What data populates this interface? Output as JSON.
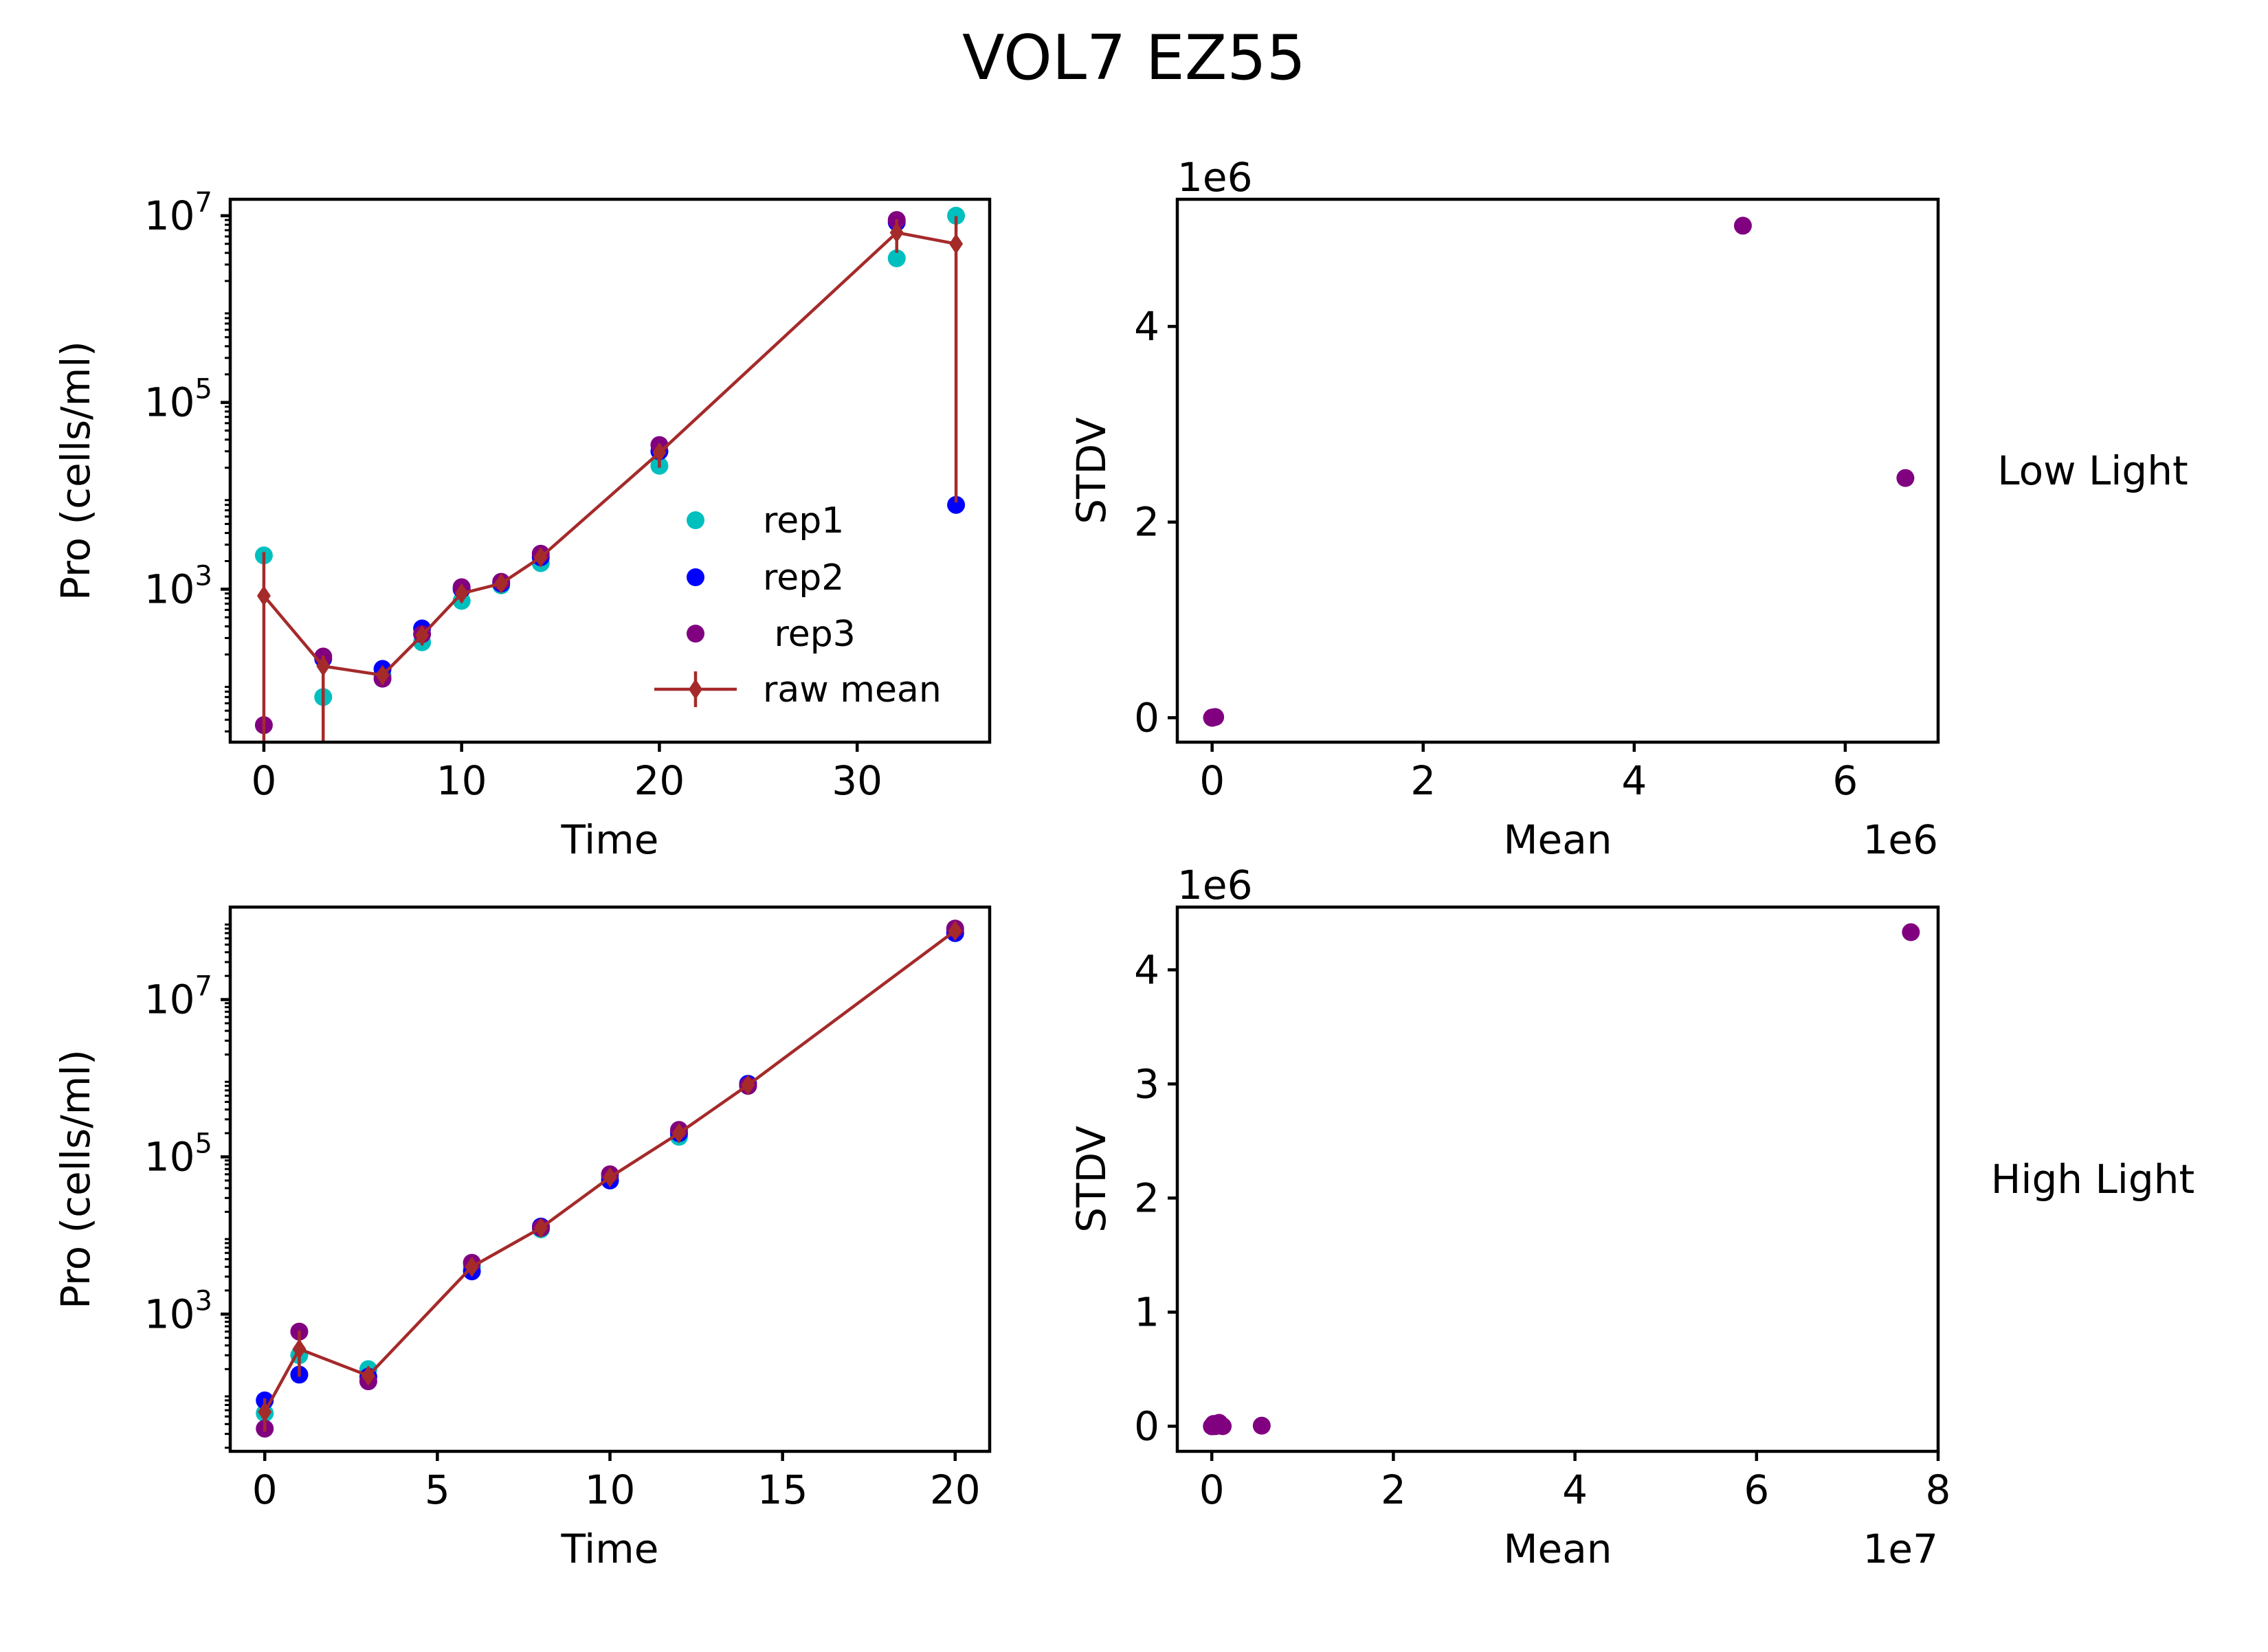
{
  "figure_title": "VOL7 EZ55",
  "colors": {
    "rep1": "#00bfbf",
    "rep2": "#0000ff",
    "rep3": "#800080",
    "raw_mean": "#a52a2a"
  },
  "chart_data": [
    {
      "type": "line",
      "y_scale": "log",
      "xlabel": "Time",
      "ylabel": "Pro (cells/ml)",
      "xlim": [
        -1.7,
        36.7
      ],
      "ylim": [
        23,
        15000000
      ],
      "xticks": [
        0,
        10,
        20,
        30
      ],
      "yticks": [
        1000,
        100000,
        10000000
      ],
      "ytick_labels": [
        {
          "base": "10",
          "exp": "3"
        },
        {
          "base": "10",
          "exp": "5"
        },
        {
          "base": "10",
          "exp": "7"
        }
      ],
      "legend": {
        "position": "lower right",
        "entries": [
          "rep1",
          "rep2",
          " rep3",
          "raw mean"
        ]
      },
      "series": [
        {
          "name": "rep1",
          "kind": "scatter",
          "color": "#00bfbf",
          "x": [
            0,
            3,
            6,
            8,
            10,
            12,
            14,
            20,
            32,
            35
          ],
          "y": [
            2300,
            70,
            120,
            270,
            750,
            1100,
            1900,
            21000,
            3500000,
            10000000
          ]
        },
        {
          "name": "rep2",
          "kind": "scatter",
          "color": "#0000ff",
          "x": [
            3,
            6,
            8,
            10,
            12,
            14,
            20,
            32,
            35
          ],
          "y": [
            180,
            140,
            380,
            1000,
            1150,
            2200,
            30000,
            8500000,
            8000
          ]
        },
        {
          "name": " rep3",
          "kind": "scatter",
          "color": "#800080",
          "x": [
            0,
            3,
            6,
            8,
            10,
            12,
            14,
            20,
            32
          ],
          "y": [
            35,
            190,
            110,
            330,
            1050,
            1200,
            2400,
            35000,
            9000000
          ]
        },
        {
          "name": "raw mean",
          "kind": "errorline",
          "color": "#a52a2a",
          "x": [
            0,
            3,
            6,
            8,
            10,
            12,
            14,
            20,
            32,
            35
          ],
          "y": [
            850,
            150,
            120,
            320,
            900,
            1150,
            2200,
            29000,
            6600000,
            5000000
          ],
          "yerr_low": [
            23,
            23,
            95,
            250,
            720,
            1050,
            1850,
            20000,
            4000000,
            8500
          ],
          "yerr_high": [
            2500,
            195,
            145,
            390,
            1050,
            1250,
            2500,
            36000,
            9200000,
            9900000
          ]
        }
      ]
    },
    {
      "type": "scatter",
      "xlabel": "Mean",
      "ylabel": "STDV",
      "x_offset_text": "1e6",
      "y_offset_text": "1e6",
      "xlim": [
        -0.33,
        6.88
      ],
      "ylim": [
        -0.25,
        5.3
      ],
      "xticks": [
        0,
        2,
        4,
        6
      ],
      "yticks": [
        0,
        2,
        4
      ],
      "row_label": "Low Light",
      "series": [
        {
          "name": "",
          "color": "#800080",
          "x": [
            0.0009,
            0.00015,
            0.00012,
            0.00032,
            0.0009,
            0.00115,
            0.0022,
            0.029,
            5.03,
            6.57
          ],
          "y": [
            0.0012,
            5e-05,
            2e-05,
            5e-05,
            0.00015,
            5e-05,
            0.0003,
            0.007,
            5.03,
            2.45
          ]
        }
      ]
    },
    {
      "type": "line",
      "y_scale": "log",
      "xlabel": "Time",
      "ylabel": "Pro (cells/ml)",
      "xlim": [
        -1.0,
        21.0
      ],
      "ylim": [
        18,
        150000000
      ],
      "xticks": [
        0,
        5,
        10,
        15,
        20
      ],
      "yticks": [
        1000,
        100000,
        10000000
      ],
      "ytick_labels": [
        {
          "base": "10",
          "exp": "3"
        },
        {
          "base": "10",
          "exp": "5"
        },
        {
          "base": "10",
          "exp": "7"
        }
      ],
      "series": [
        {
          "name": "rep1",
          "kind": "scatter",
          "color": "#00bfbf",
          "x": [
            0,
            1,
            3,
            6,
            8,
            10,
            12,
            14,
            20
          ],
          "y": [
            55,
            300,
            200,
            4000,
            12000,
            55000,
            180000,
            800000,
            75000000
          ]
        },
        {
          "name": "rep2",
          "kind": "scatter",
          "color": "#0000ff",
          "x": [
            0,
            1,
            3,
            6,
            8,
            10,
            12,
            14,
            20
          ],
          "y": [
            80,
            170,
            160,
            3500,
            13000,
            50000,
            200000,
            850000,
            70000000
          ]
        },
        {
          "name": " rep3",
          "kind": "scatter",
          "color": "#800080",
          "x": [
            0,
            1,
            3,
            6,
            8,
            10,
            12,
            14,
            20
          ],
          "y": [
            35,
            600,
            140,
            4500,
            12500,
            60000,
            220000,
            800000,
            80000000
          ]
        },
        {
          "name": "raw mean",
          "kind": "errorline",
          "color": "#a52a2a",
          "x": [
            0,
            1,
            3,
            6,
            8,
            10,
            12,
            14,
            20
          ],
          "y": [
            57,
            360,
            165,
            4000,
            12500,
            55000,
            200000,
            820000,
            75000000
          ],
          "yerr_low": [
            32,
            160,
            130,
            3400,
            11000,
            48000,
            170000,
            700000,
            68000000
          ],
          "yerr_high": [
            85,
            620,
            210,
            4700,
            14500,
            62000,
            230000,
            960000,
            82000000
          ]
        }
      ]
    },
    {
      "type": "scatter",
      "xlabel": "Mean",
      "ylabel": "STDV",
      "x_offset_text": "1e7",
      "y_offset_text": "1e6",
      "xlim": [
        -0.38,
        8.0
      ],
      "ylim": [
        -0.22,
        4.55
      ],
      "xticks": [
        0,
        2,
        4,
        6,
        8
      ],
      "yticks": [
        0,
        1,
        2,
        3,
        4
      ],
      "row_label": "High Light",
      "series": [
        {
          "name": "",
          "color": "#800080",
          "x": [
            0.0006,
            0.004,
            0.002,
            0.04,
            0.12,
            0.55,
            0.02,
            0.08,
            7.7
          ],
          "y": [
            2e-05,
            0.0002,
            3e-05,
            0.0005,
            0.0005,
            0.005,
            0.02,
            0.03,
            4.33
          ]
        }
      ]
    }
  ]
}
